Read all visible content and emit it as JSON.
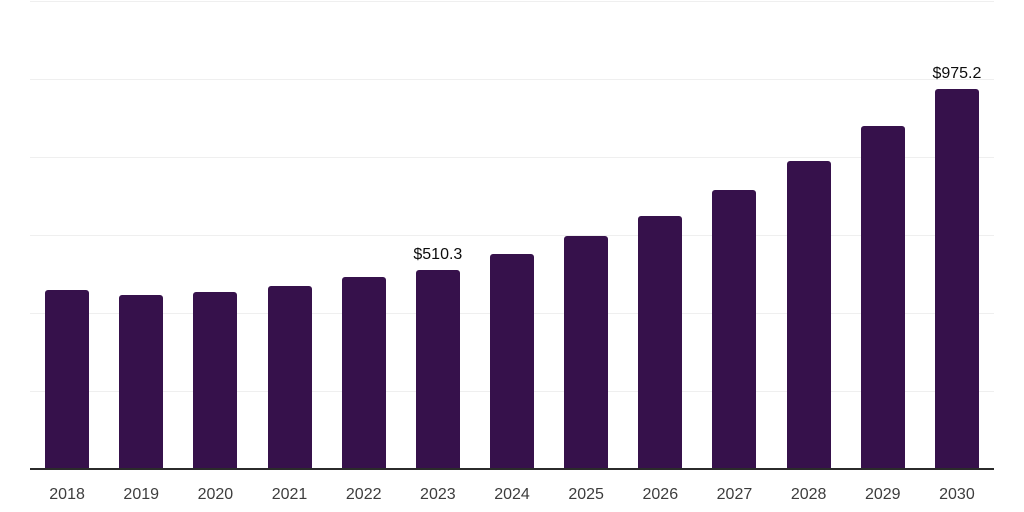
{
  "chart_data": {
    "type": "bar",
    "title": "",
    "xlabel": "",
    "ylabel": "",
    "categories": [
      "2018",
      "2019",
      "2020",
      "2021",
      "2022",
      "2023",
      "2024",
      "2025",
      "2026",
      "2027",
      "2028",
      "2029",
      "2030"
    ],
    "values": [
      458,
      445,
      454,
      470,
      493,
      510.3,
      552,
      597,
      650,
      715,
      790,
      880,
      975.2
    ],
    "value_labels": {
      "2023": "$510.3",
      "2030": "$975.2"
    },
    "ylim": [
      0,
      1200
    ],
    "grid": true,
    "grid_step": 200,
    "y_tick_labels_visible": false,
    "legend": "none",
    "colors": {
      "bar": "#36114b",
      "gridline": "#efefef",
      "axis_line": "#2b2b2b",
      "tick_label": "#3d3d3d",
      "value_label": "#0d0d0d"
    }
  }
}
